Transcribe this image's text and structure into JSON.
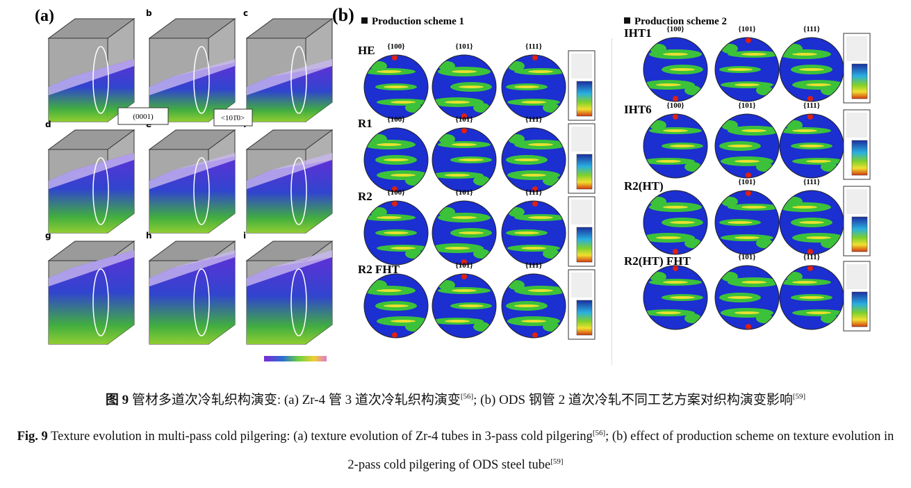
{
  "figure": {
    "panel_a": {
      "label": "(a)",
      "subpanels": [
        "b",
        "c",
        "d",
        "e",
        "f",
        "g",
        "h",
        "i"
      ],
      "annotations": [
        "(0001)",
        "<101̄0>"
      ]
    },
    "panel_b": {
      "label": "(b)",
      "schemes": [
        {
          "title": "Production scheme 1",
          "rows": [
            {
              "label": "HE",
              "poles": [
                "{100}",
                "{101}",
                "{111}"
              ]
            },
            {
              "label": "R1",
              "poles": [
                "{100}",
                "{101}",
                "{111}"
              ]
            },
            {
              "label": "R2",
              "poles": [
                "{100}",
                "{101}",
                "{111}"
              ]
            },
            {
              "label": "R2 FHT",
              "poles": [
                null,
                "{101}",
                "{111}"
              ]
            }
          ]
        },
        {
          "title": "Production scheme 2",
          "rows": [
            {
              "label": "IHT1",
              "poles": [
                "{100}",
                "{101}",
                "{111}"
              ]
            },
            {
              "label": "IHT6",
              "poles": [
                "{100}",
                "{101}",
                "{111}"
              ]
            },
            {
              "label": "R2(HT)",
              "poles": [
                null,
                "{101}",
                "{111}"
              ]
            },
            {
              "label": "R2(HT) FHT",
              "poles": [
                null,
                "{101}",
                "{111}"
              ]
            }
          ]
        }
      ]
    }
  },
  "caption": {
    "zh": {
      "label": "图 9",
      "text": " 管材多道次冷轧织构演变: (a) Zr-4 管 3 道次冷轧织构演变",
      "ref1": "[56]",
      "text2": "; (b) ODS 钢管 2 道次冷轧不同工艺方案对织构演变影响",
      "ref2": "[59]"
    },
    "en": {
      "label": "Fig. 9",
      "text": " Texture evolution in multi-pass cold pilgering: (a) texture evolution of Zr-4 tubes in 3-pass cold pilgering",
      "ref1": "[56]",
      "text2": "; (b) effect of production scheme on texture evolution in 2-pass cold pilgering of ODS steel tube",
      "ref2": "[59]"
    }
  }
}
